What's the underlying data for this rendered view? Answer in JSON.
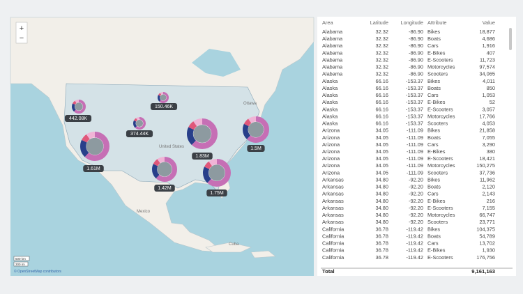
{
  "map": {
    "zoom_in": "+",
    "zoom_out": "−",
    "places": [
      "Ottawa",
      "United States",
      "Mexico",
      "Cuba"
    ],
    "bubbles": [
      "442.08K",
      "150.46K",
      "374.44K",
      "1.83M",
      "1.5M",
      "1.61M",
      "1.42M",
      "1.75M"
    ],
    "scale": [
      "500 km",
      "300 mi"
    ],
    "attribution": "© OpenStreetMap contributors"
  },
  "table": {
    "columns": [
      "Area",
      "Latitude",
      "Longitude",
      "Attribute",
      "Value"
    ],
    "rows": [
      [
        "Alabama",
        "32.32",
        "-86.90",
        "Bikes",
        "18,877"
      ],
      [
        "Alabama",
        "32.32",
        "-86.90",
        "Boats",
        "4,686"
      ],
      [
        "Alabama",
        "32.32",
        "-86.90",
        "Cars",
        "1,916"
      ],
      [
        "Alabama",
        "32.32",
        "-86.90",
        "E-Bikes",
        "407"
      ],
      [
        "Alabama",
        "32.32",
        "-86.90",
        "E-Scooters",
        "11,723"
      ],
      [
        "Alabama",
        "32.32",
        "-86.90",
        "Motorcycles",
        "97,574"
      ],
      [
        "Alabama",
        "32.32",
        "-86.90",
        "Scooters",
        "34,065"
      ],
      [
        "Alaska",
        "66.16",
        "-153.37",
        "Bikes",
        "4,011"
      ],
      [
        "Alaska",
        "66.16",
        "-153.37",
        "Boats",
        "850"
      ],
      [
        "Alaska",
        "66.16",
        "-153.37",
        "Cars",
        "1,053"
      ],
      [
        "Alaska",
        "66.16",
        "-153.37",
        "E-Bikes",
        "52"
      ],
      [
        "Alaska",
        "66.16",
        "-153.37",
        "E-Scooters",
        "3,057"
      ],
      [
        "Alaska",
        "66.16",
        "-153.37",
        "Motorcycles",
        "17,766"
      ],
      [
        "Alaska",
        "66.16",
        "-153.37",
        "Scooters",
        "4,053"
      ],
      [
        "Arizona",
        "34.05",
        "-111.09",
        "Bikes",
        "21,858"
      ],
      [
        "Arizona",
        "34.05",
        "-111.09",
        "Boats",
        "7,055"
      ],
      [
        "Arizona",
        "34.05",
        "-111.09",
        "Cars",
        "3,290"
      ],
      [
        "Arizona",
        "34.05",
        "-111.09",
        "E-Bikes",
        "380"
      ],
      [
        "Arizona",
        "34.05",
        "-111.09",
        "E-Scooters",
        "18,421"
      ],
      [
        "Arizona",
        "34.05",
        "-111.09",
        "Motorcycles",
        "150,275"
      ],
      [
        "Arizona",
        "34.05",
        "-111.09",
        "Scooters",
        "37,736"
      ],
      [
        "Arkansas",
        "34.80",
        "-92.20",
        "Bikes",
        "11,962"
      ],
      [
        "Arkansas",
        "34.80",
        "-92.20",
        "Boats",
        "2,120"
      ],
      [
        "Arkansas",
        "34.80",
        "-92.20",
        "Cars",
        "2,143"
      ],
      [
        "Arkansas",
        "34.80",
        "-92.20",
        "E-Bikes",
        "216"
      ],
      [
        "Arkansas",
        "34.80",
        "-92.20",
        "E-Scooters",
        "7,155"
      ],
      [
        "Arkansas",
        "34.80",
        "-92.20",
        "Motorcycles",
        "66,747"
      ],
      [
        "Arkansas",
        "34.80",
        "-92.20",
        "Scooters",
        "23,771"
      ],
      [
        "California",
        "36.78",
        "-119.42",
        "Bikes",
        "104,375"
      ],
      [
        "California",
        "36.78",
        "-119.42",
        "Boats",
        "54,789"
      ],
      [
        "California",
        "36.78",
        "-119.42",
        "Cars",
        "13,702"
      ],
      [
        "California",
        "36.78",
        "-119.42",
        "E-Bikes",
        "1,930"
      ],
      [
        "California",
        "36.78",
        "-119.42",
        "E-Scooters",
        "176,756"
      ]
    ],
    "total_label": "Total",
    "total": "9,161,163"
  }
}
